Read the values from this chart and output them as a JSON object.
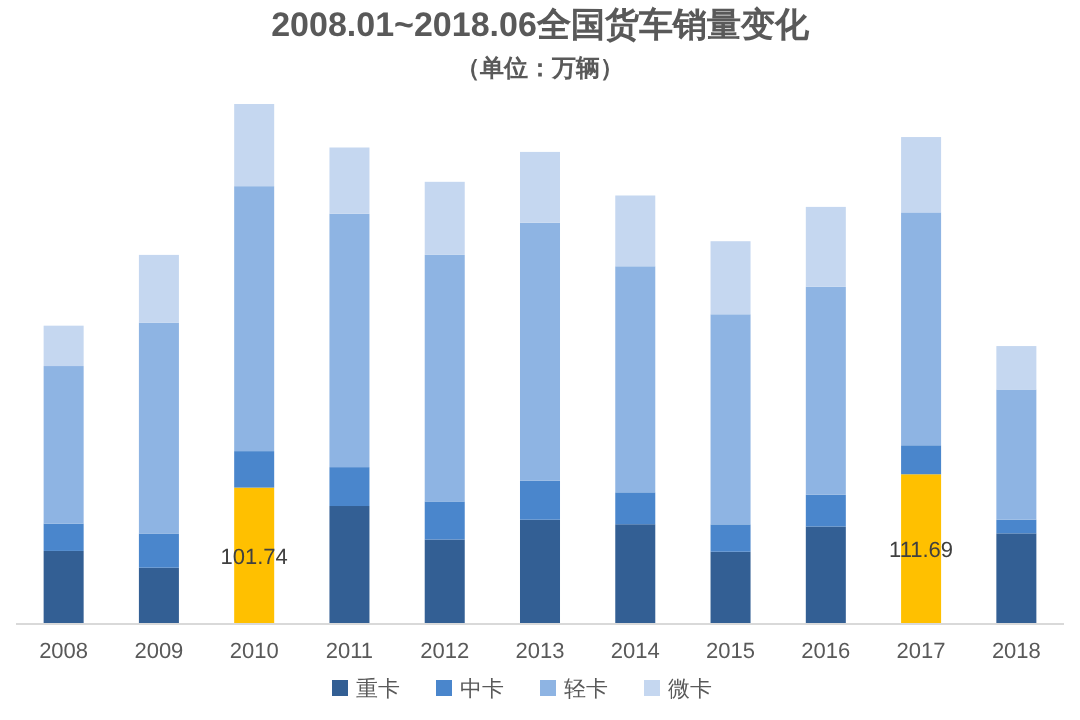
{
  "chart_data": {
    "type": "bar",
    "title": "2008.01~2018.06全国货车销量变化",
    "subtitle": "（单位：万辆）",
    "stacked": true,
    "legend": "bottom",
    "categories": [
      "2008",
      "2009",
      "2010",
      "2011",
      "2012",
      "2013",
      "2014",
      "2015",
      "2016",
      "2017",
      "2018"
    ],
    "series": [
      {
        "name": "重卡",
        "color": "#335f94",
        "colors": [
          "#335f94",
          "#335f94",
          "#ffc000",
          "#335f94",
          "#335f94",
          "#335f94",
          "#335f94",
          "#335f94",
          "#335f94",
          "#ffc000",
          "#335f94"
        ],
        "values": [
          54.5,
          42.0,
          101.74,
          88.0,
          63.0,
          77.8,
          74.4,
          53.9,
          72.7,
          111.69,
          67.6
        ],
        "value_labels": [
          null,
          null,
          "101.74",
          null,
          null,
          null,
          null,
          null,
          null,
          "111.69",
          null
        ]
      },
      {
        "name": "中卡",
        "color": "#4a86cc",
        "values": [
          20.4,
          25.5,
          27.2,
          29.0,
          28.4,
          29.0,
          23.8,
          20.4,
          23.8,
          21.6,
          10.2
        ]
      },
      {
        "name": "轻卡",
        "color": "#8eb4e3",
        "values": [
          117.5,
          157.3,
          197.6,
          189.0,
          183.9,
          192.5,
          168.6,
          156.7,
          155.0,
          173.7,
          97.1
        ]
      },
      {
        "name": "微卡",
        "color": "#c5d7f0",
        "values": [
          30.1,
          50.5,
          61.3,
          49.4,
          54.5,
          52.8,
          52.8,
          54.5,
          59.6,
          56.2,
          32.4
        ]
      }
    ]
  }
}
